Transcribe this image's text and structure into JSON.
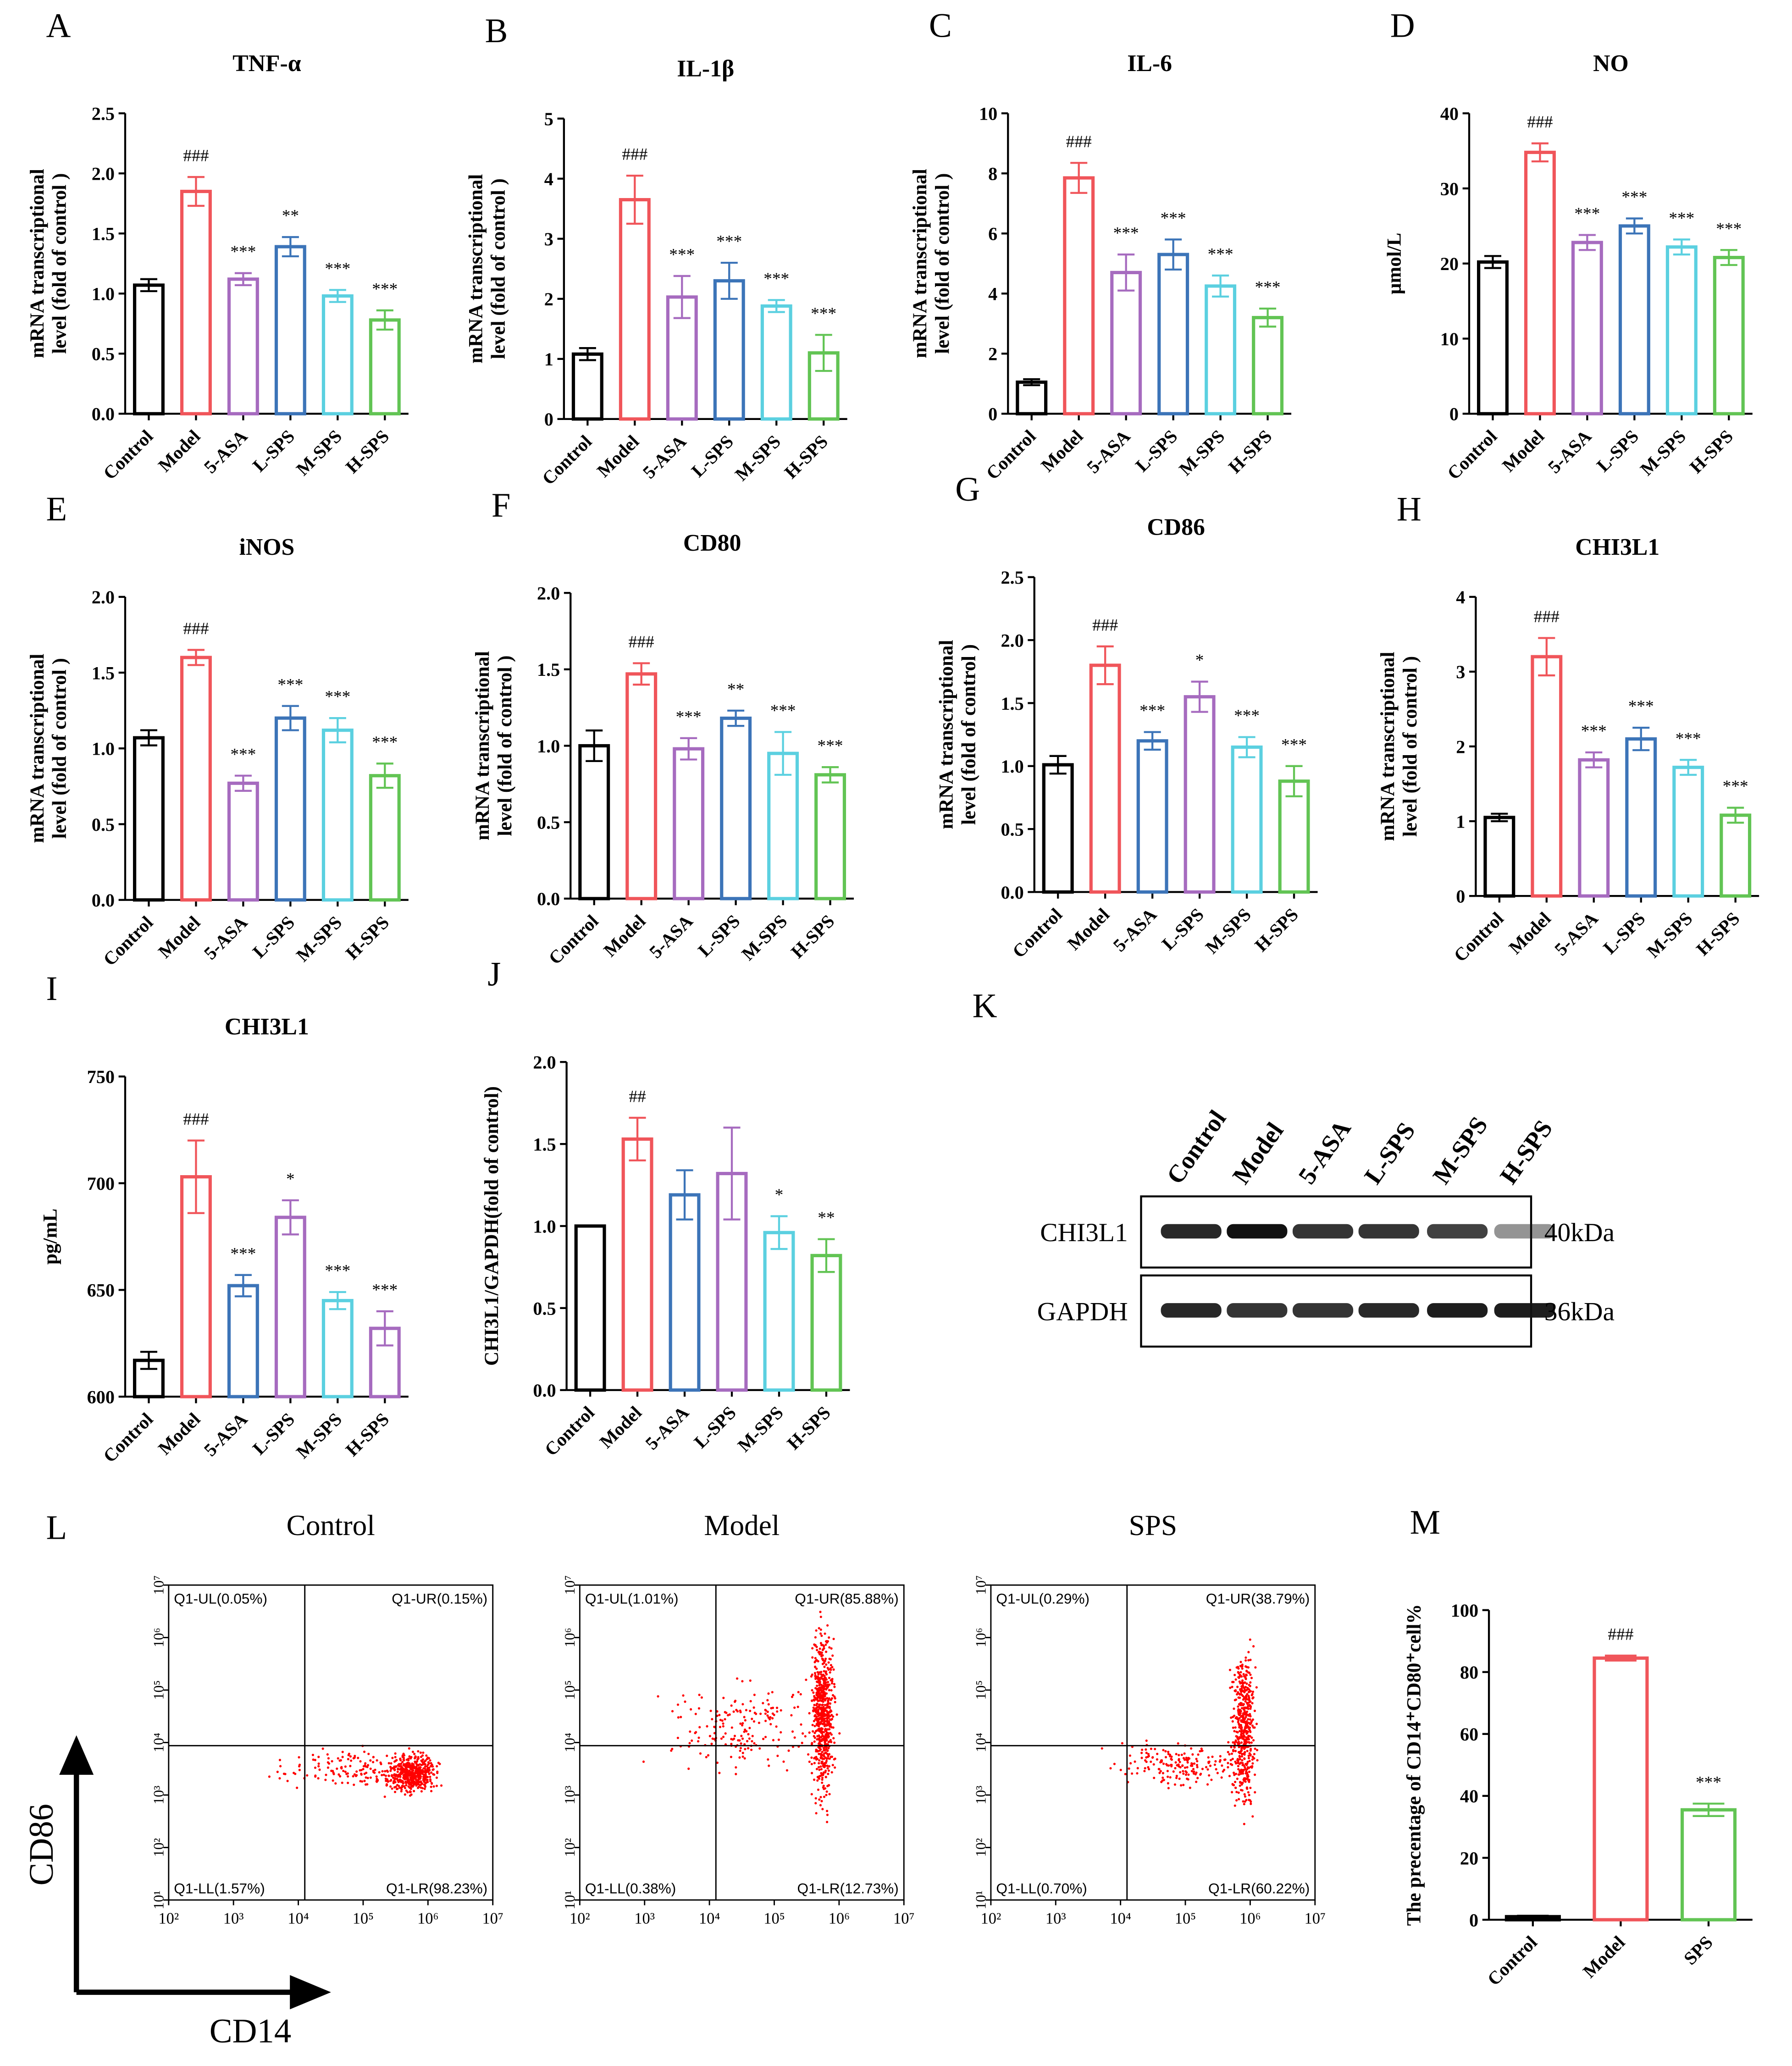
{
  "chart_data": [
    {
      "type": "bar",
      "panel": "A",
      "title": "TNF-α",
      "ylabel": [
        "mRNA transcriptional",
        "level (fold of control )"
      ],
      "categories": [
        "Control",
        "Model",
        "5-ASA",
        "L-SPS",
        "M-SPS",
        "H-SPS"
      ],
      "colors": [
        "#000000",
        "#f0555a",
        "#a66bbf",
        "#3c74b8",
        "#5bd0e0",
        "#62c454"
      ],
      "values": [
        1.07,
        1.85,
        1.12,
        1.39,
        0.98,
        0.78
      ],
      "errors": [
        0.05,
        0.12,
        0.05,
        0.08,
        0.05,
        0.08
      ],
      "annotations": [
        null,
        "###",
        "***",
        "**",
        "***",
        "***"
      ],
      "ylim": [
        0,
        2.5
      ],
      "yticks": [
        {
          "value": 0,
          "label": "0.0"
        },
        {
          "value": 0.5,
          "label": "0.5"
        },
        {
          "value": 1,
          "label": "1.0"
        },
        {
          "value": 1.5,
          "label": "1.5"
        },
        {
          "value": 2,
          "label": "2.0"
        },
        {
          "value": 2.5,
          "label": "2.5"
        }
      ]
    },
    {
      "type": "bar",
      "panel": "B",
      "title": "IL-1β",
      "ylabel": [
        "mRNA transcriptional",
        "level (fold of control )"
      ],
      "categories": [
        "Control",
        "Model",
        "5-ASA",
        "L-SPS",
        "M-SPS",
        "H-SPS"
      ],
      "colors": [
        "#000000",
        "#f0555a",
        "#a66bbf",
        "#3c74b8",
        "#5bd0e0",
        "#62c454"
      ],
      "values": [
        1.08,
        3.65,
        2.03,
        2.3,
        1.88,
        1.1
      ],
      "errors": [
        0.1,
        0.4,
        0.35,
        0.3,
        0.1,
        0.3
      ],
      "annotations": [
        null,
        "###",
        "***",
        "***",
        "***",
        "***"
      ],
      "ylim": [
        0,
        5
      ],
      "yticks": [
        0,
        1,
        2,
        3,
        4,
        5
      ]
    },
    {
      "type": "bar",
      "panel": "C",
      "title": "IL-6",
      "ylabel": [
        "mRNA transcriptional",
        "level (fold of control )"
      ],
      "categories": [
        "Control",
        "Model",
        "5-ASA",
        "L-SPS",
        "M-SPS",
        "H-SPS"
      ],
      "colors": [
        "#000000",
        "#f0555a",
        "#a66bbf",
        "#3c74b8",
        "#5bd0e0",
        "#62c454"
      ],
      "values": [
        1.05,
        7.85,
        4.7,
        5.3,
        4.25,
        3.2
      ],
      "errors": [
        0.1,
        0.5,
        0.6,
        0.5,
        0.35,
        0.3
      ],
      "annotations": [
        null,
        "###",
        "***",
        "***",
        "***",
        "***"
      ],
      "ylim": [
        0,
        10
      ],
      "yticks": [
        0,
        2,
        4,
        6,
        8,
        10
      ]
    },
    {
      "type": "bar",
      "panel": "D",
      "title": "NO",
      "ylabel": "μmol/L",
      "categories": [
        "Control",
        "Model",
        "5-ASA",
        "L-SPS",
        "M-SPS",
        "H-SPS"
      ],
      "colors": [
        "#000000",
        "#f0555a",
        "#a66bbf",
        "#3c74b8",
        "#5bd0e0",
        "#62c454"
      ],
      "values": [
        20.2,
        34.8,
        22.8,
        25,
        22.2,
        20.8
      ],
      "errors": [
        0.8,
        1.2,
        1,
        1,
        1,
        1
      ],
      "annotations": [
        null,
        "###",
        "***",
        "***",
        "***",
        "***"
      ],
      "ylim": [
        0,
        40
      ],
      "yticks": [
        0,
        10,
        20,
        30,
        40
      ]
    },
    {
      "type": "bar",
      "panel": "E",
      "title": "iNOS",
      "ylabel": [
        "mRNA transcriptional",
        "level (fold of control )"
      ],
      "categories": [
        "Control",
        "Model",
        "5-ASA",
        "L-SPS",
        "M-SPS",
        "H-SPS"
      ],
      "colors": [
        "#000000",
        "#f0555a",
        "#a66bbf",
        "#3c74b8",
        "#5bd0e0",
        "#62c454"
      ],
      "values": [
        1.07,
        1.6,
        0.77,
        1.2,
        1.12,
        0.82
      ],
      "errors": [
        0.05,
        0.05,
        0.05,
        0.08,
        0.08,
        0.08
      ],
      "annotations": [
        null,
        "###",
        "***",
        "***",
        "***",
        "***"
      ],
      "ylim": [
        0,
        2
      ],
      "yticks": [
        {
          "value": 0,
          "label": "0.0"
        },
        {
          "value": 0.5,
          "label": "0.5"
        },
        {
          "value": 1,
          "label": "1.0"
        },
        {
          "value": 1.5,
          "label": "1.5"
        },
        {
          "value": 2,
          "label": "2.0"
        }
      ]
    },
    {
      "type": "bar",
      "panel": "F",
      "title": "CD80",
      "ylabel": [
        "mRNA transcriptional",
        "level (fold of control )"
      ],
      "categories": [
        "Control",
        "Model",
        "5-ASA",
        "L-SPS",
        "M-SPS",
        "H-SPS"
      ],
      "colors": [
        "#000000",
        "#f0555a",
        "#a66bbf",
        "#3c74b8",
        "#5bd0e0",
        "#62c454"
      ],
      "values": [
        1.0,
        1.47,
        0.98,
        1.18,
        0.95,
        0.81
      ],
      "errors": [
        0.1,
        0.07,
        0.07,
        0.05,
        0.14,
        0.05
      ],
      "annotations": [
        null,
        "###",
        "***",
        "**",
        "***",
        "***"
      ],
      "ylim": [
        0,
        2
      ],
      "yticks": [
        {
          "value": 0,
          "label": "0.0"
        },
        {
          "value": 0.5,
          "label": "0.5"
        },
        {
          "value": 1,
          "label": "1.0"
        },
        {
          "value": 1.5,
          "label": "1.5"
        },
        {
          "value": 2,
          "label": "2.0"
        }
      ]
    },
    {
      "type": "bar",
      "panel": "G",
      "title": "CD86",
      "ylabel": [
        "mRNA transcriptional",
        "level (fold of control )"
      ],
      "categories": [
        "Control",
        "Model",
        "5-ASA",
        "L-SPS",
        "M-SPS",
        "H-SPS"
      ],
      "colors": [
        "#000000",
        "#f0555a",
        "#3c74b8",
        "#a66bbf",
        "#5bd0e0",
        "#62c454"
      ],
      "values": [
        1.01,
        1.8,
        1.2,
        1.55,
        1.15,
        0.88
      ],
      "errors": [
        0.07,
        0.15,
        0.07,
        0.12,
        0.08,
        0.12
      ],
      "annotations": [
        null,
        "###",
        "***",
        "*",
        "***",
        "***"
      ],
      "ylim": [
        0,
        2.5
      ],
      "yticks": [
        {
          "value": 0,
          "label": "0.0"
        },
        {
          "value": 0.5,
          "label": "0.5"
        },
        {
          "value": 1,
          "label": "1.0"
        },
        {
          "value": 1.5,
          "label": "1.5"
        },
        {
          "value": 2,
          "label": "2.0"
        },
        {
          "value": 2.5,
          "label": "2.5"
        }
      ]
    },
    {
      "type": "bar",
      "panel": "H",
      "title": "CHI3L1",
      "ylabel": [
        "mRNA transcriptional",
        "level (fold of control )"
      ],
      "categories": [
        "Control",
        "Model",
        "5-ASA",
        "L-SPS",
        "M-SPS",
        "H-SPS"
      ],
      "colors": [
        "#000000",
        "#f0555a",
        "#a66bbf",
        "#3c74b8",
        "#5bd0e0",
        "#62c454"
      ],
      "values": [
        1.05,
        3.2,
        1.82,
        2.1,
        1.72,
        1.08
      ],
      "errors": [
        0.05,
        0.25,
        0.1,
        0.15,
        0.1,
        0.1
      ],
      "annotations": [
        null,
        "###",
        "***",
        "***",
        "***",
        "***"
      ],
      "ylim": [
        0,
        4
      ],
      "yticks": [
        0,
        1,
        2,
        3,
        4
      ]
    },
    {
      "type": "bar",
      "panel": "I",
      "title": "CHI3L1",
      "ylabel": "pg/mL",
      "categories": [
        "Control",
        "Model",
        "5-ASA",
        "L-SPS",
        "M-SPS",
        "H-SPS"
      ],
      "colors": [
        "#000000",
        "#f0555a",
        "#3c74b8",
        "#a66bbf",
        "#5bd0e0",
        "#a66bbf"
      ],
      "values": [
        617,
        703,
        652,
        684,
        645,
        632
      ],
      "errors": [
        4,
        17,
        5,
        8,
        4,
        8
      ],
      "annotations": [
        null,
        "###",
        "***",
        "*",
        "***",
        "***"
      ],
      "ylim": [
        600,
        750
      ],
      "yticks": [
        600,
        650,
        700,
        750
      ]
    },
    {
      "type": "bar",
      "panel": "J",
      "ylabel": "CHI3L1/GAPDH(fold of control)",
      "categories": [
        "Control",
        "Model",
        "5-ASA",
        "L-SPS",
        "M-SPS",
        "H-SPS"
      ],
      "colors": [
        "#000000",
        "#f0555a",
        "#3c74b8",
        "#a66bbf",
        "#5bd0e0",
        "#62c454"
      ],
      "values": [
        1.0,
        1.53,
        1.19,
        1.32,
        0.96,
        0.82
      ],
      "errors": [
        0,
        0.13,
        0.15,
        0.28,
        0.1,
        0.1
      ],
      "annotations": [
        null,
        "##",
        null,
        null,
        "*",
        "**"
      ],
      "ylim": [
        0,
        2
      ],
      "yticks": [
        {
          "value": 0,
          "label": "0.0"
        },
        {
          "value": 0.5,
          "label": "0.5"
        },
        {
          "value": 1,
          "label": "1.0"
        },
        {
          "value": 1.5,
          "label": "1.5"
        },
        {
          "value": 2,
          "label": "2.0"
        }
      ]
    },
    {
      "type": "western_blot",
      "panel": "K",
      "lanes": [
        "Control",
        "Model",
        "5-ASA",
        "L-SPS",
        "M-SPS",
        "H-SPS"
      ],
      "rows": [
        "CHI3L1",
        "GAPDH"
      ],
      "sizes": [
        "40kDa",
        "36kDa"
      ]
    },
    {
      "type": "flow_cytometry",
      "panel": "L",
      "xlabel": "CD14",
      "ylabel": "CD86",
      "xscale": "log",
      "yscale": "log",
      "xlim": [
        100,
        10000000
      ],
      "ylim": [
        10,
        10000000
      ],
      "xticks": [
        {
          "value": 100,
          "label": "10²"
        },
        {
          "value": 1000,
          "label": "10³"
        },
        {
          "value": 10000,
          "label": "10⁴"
        },
        {
          "value": 100000,
          "label": "10⁵"
        },
        {
          "value": 1000000,
          "label": "10⁶"
        },
        {
          "value": 10000000,
          "label": "10⁷"
        }
      ],
      "yticks": [
        {
          "value": 10,
          "label": "10¹"
        },
        {
          "value": 100,
          "label": "10²"
        },
        {
          "value": 1000,
          "label": "10³"
        },
        {
          "value": 10000,
          "label": "10⁴"
        },
        {
          "value": 100000,
          "label": "10⁵"
        },
        {
          "value": 1000000,
          "label": "10⁶"
        },
        {
          "value": 10000000,
          "label": "10⁷"
        }
      ],
      "plots": [
        {
          "title": "Control",
          "UL": "Q1-UL(0.05%)",
          "UR": "Q1-UR(0.15%)",
          "LL": "Q1-LL(1.57%)",
          "LR": "Q1-LR(98.23%)"
        },
        {
          "title": "Model",
          "UL": "Q1-UL(1.01%)",
          "UR": "Q1-UR(85.88%)",
          "LL": "Q1-LL(0.38%)",
          "LR": "Q1-LR(12.73%)"
        },
        {
          "title": "SPS",
          "UL": "Q1-UL(0.29%)",
          "UR": "Q1-UR(38.79%)",
          "LL": "Q1-LL(0.70%)",
          "LR": "Q1-LR(60.22%)"
        }
      ]
    },
    {
      "type": "bar",
      "panel": "M",
      "ylabel": "The precentage of CD14⁺CD80⁺cell%",
      "categories": [
        "Control",
        "Model",
        "SPS"
      ],
      "colors": [
        "#000000",
        "#f0555a",
        "#62c454"
      ],
      "values": [
        1,
        84.5,
        35.5
      ],
      "errors": [
        0.3,
        0.8,
        2
      ],
      "annotations": [
        null,
        "###",
        "***"
      ],
      "ylim": [
        0,
        100
      ],
      "yticks": [
        0,
        20,
        40,
        60,
        80,
        100
      ]
    }
  ]
}
